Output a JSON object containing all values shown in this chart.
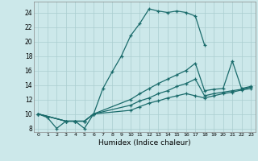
{
  "bg_color": "#cce8ea",
  "grid_color": "#aacdd0",
  "line_color": "#1a6b6b",
  "xlabel": "Humidex (Indice chaleur)",
  "xlim": [
    -0.5,
    23.5
  ],
  "ylim": [
    7.5,
    25.5
  ],
  "yticks": [
    8,
    10,
    12,
    14,
    16,
    18,
    20,
    22,
    24
  ],
  "xticks": [
    0,
    1,
    2,
    3,
    4,
    5,
    6,
    7,
    8,
    9,
    10,
    11,
    12,
    13,
    14,
    15,
    16,
    17,
    18,
    19,
    20,
    21,
    22,
    23
  ],
  "line1_x": [
    0,
    1,
    2,
    3,
    4,
    5,
    6,
    7,
    8,
    9,
    10,
    11,
    12,
    13,
    14,
    15,
    16,
    17,
    18
  ],
  "line1_y": [
    10.0,
    9.5,
    8.0,
    9.0,
    9.0,
    8.0,
    10.0,
    13.5,
    15.8,
    18.0,
    20.8,
    22.5,
    24.5,
    24.2,
    24.0,
    24.2,
    24.0,
    23.5,
    19.5
  ],
  "line2_x": [
    0,
    3,
    4,
    5,
    6,
    10,
    11,
    12,
    13,
    14,
    15,
    16,
    17,
    18,
    19,
    20,
    21,
    22,
    23
  ],
  "line2_y": [
    10.0,
    9.0,
    9.0,
    9.0,
    10.0,
    12.0,
    12.8,
    13.5,
    14.2,
    14.8,
    15.4,
    16.0,
    17.0,
    13.2,
    13.4,
    13.5,
    17.3,
    13.5,
    13.8
  ],
  "line3_x": [
    0,
    3,
    4,
    5,
    6,
    10,
    11,
    12,
    13,
    14,
    15,
    16,
    17,
    18,
    19,
    20,
    21,
    22,
    23
  ],
  "line3_y": [
    10.0,
    9.0,
    9.0,
    9.0,
    10.0,
    11.2,
    11.8,
    12.2,
    12.8,
    13.2,
    13.8,
    14.2,
    14.8,
    12.5,
    12.8,
    13.0,
    13.2,
    13.4,
    13.7
  ],
  "line4_x": [
    0,
    3,
    4,
    5,
    6,
    10,
    11,
    12,
    13,
    14,
    15,
    16,
    17,
    18,
    19,
    20,
    21,
    22,
    23
  ],
  "line4_y": [
    10.0,
    9.0,
    9.0,
    9.0,
    10.0,
    10.5,
    11.0,
    11.5,
    11.8,
    12.2,
    12.5,
    12.8,
    12.5,
    12.2,
    12.5,
    12.8,
    13.0,
    13.3,
    13.5
  ]
}
